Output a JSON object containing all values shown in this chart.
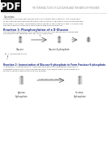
{
  "bg_color": "#ffffff",
  "pdf_box_color": "#111111",
  "pdf_text": "PDF",
  "header_text": "THE TEN REACTIONS OF GLYCOLYSIS AND THE FATES OF PYRUVATE",
  "subheader": "Glycolysis",
  "intro_lines": [
    "Glycolysis is an anaerobic process that occurs within the cytoplasm. It is a sequence",
    "of ten enzyme-catalyzed events where one molecule of glucose is transformed into two",
    "molecules of pyruvate. This transformation results in the creation of two ATP molecules",
    "and the reduction of two NAD molecules to two NADH molecules."
  ],
  "r1_title": "Reaction 1: Phosphorylation of a D-Glucose",
  "r1_lines": [
    "The first step in glycolysis is the conversion of D-glucose into glucose-6-phosphate.",
    "The enzyme that catalyzes this reaction is hexokinase."
  ],
  "r1_label_left": "Glucose",
  "r1_label_right": "Glucose-6-phosphate",
  "r1_note": "1  phosphate group",
  "r2_title": "Reaction 2: Isomerization of Glucose-6-phosphate to Form Fructose-6-phosphate",
  "r2_title_color": "#223388",
  "r2_lines": [
    "In Reaction 2, phosphoglucose isomerase catalyzes the isomerization of glucose-6-",
    "phosphate (G6P) to fructose-6-phosphate (F6P). The isomerization of an aldose to a",
    "ketose is called a isomerization by the enzyme."
  ],
  "r2_label_left": "glucose-\n6-phosphate",
  "r2_label_right": "fructose-\n6-phosphate",
  "r2_enzyme": "phosphoglucose isomerase",
  "text_color": "#333333",
  "diag_color": "#666666",
  "title_color": "#223388"
}
